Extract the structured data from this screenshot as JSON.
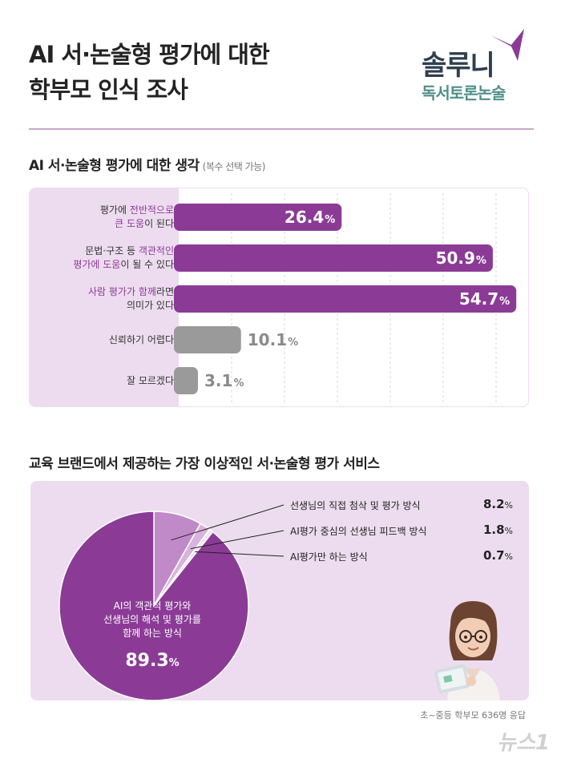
{
  "header": {
    "title_line1": "AI 서·논술형 평가에 대한",
    "title_line2": "학부모 인식 조사",
    "logo_main": "솔루니",
    "logo_sub": "독서토론논술",
    "accent": "#8b3b96"
  },
  "section1": {
    "title": "AI 서·논술형 평가에 대한 생각",
    "note": "(복수 선택 가능)"
  },
  "section2": {
    "title": "교육 브랜드에서 제공하는 가장 이상적인 서·논술형 평가 서비스"
  },
  "chart_data": [
    {
      "type": "bar",
      "orientation": "horizontal",
      "title": "AI 서·논술형 평가에 대한 생각",
      "categories": [
        [
          "평가에 ",
          "전반적으로",
          "\n",
          "큰 도움",
          "이 된다"
        ],
        [
          "문법·구조 등 ",
          "객관적인",
          "\n",
          "평가에 도움",
          "이 될 수 있다"
        ],
        [
          "사람 평가가 함께",
          "라면",
          "\n",
          "의미가 있다"
        ],
        [
          "신뢰하기 어렵다"
        ],
        [
          "잘 모르겠다"
        ]
      ],
      "values": [
        26.4,
        50.9,
        54.7,
        10.1,
        3.1
      ],
      "unit": "%",
      "colors": [
        "#8b3b96",
        "#8b3b96",
        "#8b3b96",
        "#9a9a9a",
        "#9a9a9a"
      ],
      "xlim": [
        0,
        60
      ],
      "grid": true
    },
    {
      "type": "pie",
      "title": "교육 브랜드에서 제공하는 가장 이상적인 서·논술형 평가 서비스",
      "slices": [
        {
          "label": "AI의 객관적 평가와\n선생님의 해석 및 평가를\n함께 하는 방식",
          "value": 89.3,
          "color": "#8b3b96"
        },
        {
          "label": "선생님의 직접 첨삭 및 평가 방식",
          "value": 8.2,
          "color": "#c08ac8"
        },
        {
          "label": "AI평가 중심의 선생님 피드백 방식",
          "value": 1.8,
          "color": "#d8b3dd"
        },
        {
          "label": "AI평가만 하는 방식",
          "value": 0.7,
          "color": "#f3e4f5"
        }
      ],
      "unit": "%"
    }
  ],
  "pie_caption": {
    "line1": "AI의 객관적 평가와",
    "line2": "선생님의 해석 및 평가를",
    "line3": "함께 하는 방식",
    "value": "89.3",
    "unit": "%"
  },
  "legend": [
    {
      "label": "선생님의 직접 첨삭 및 평가 방식",
      "value": "8.2",
      "unit": "%"
    },
    {
      "label": "AI평가 중심의 선생님 피드백 방식",
      "value": "1.8",
      "unit": "%"
    },
    {
      "label": "AI평가만 하는 방식",
      "value": "0.7",
      "unit": "%"
    }
  ],
  "footer": {
    "source": "초~중등 학부모 636명 응답",
    "watermark": "뉴스1"
  }
}
